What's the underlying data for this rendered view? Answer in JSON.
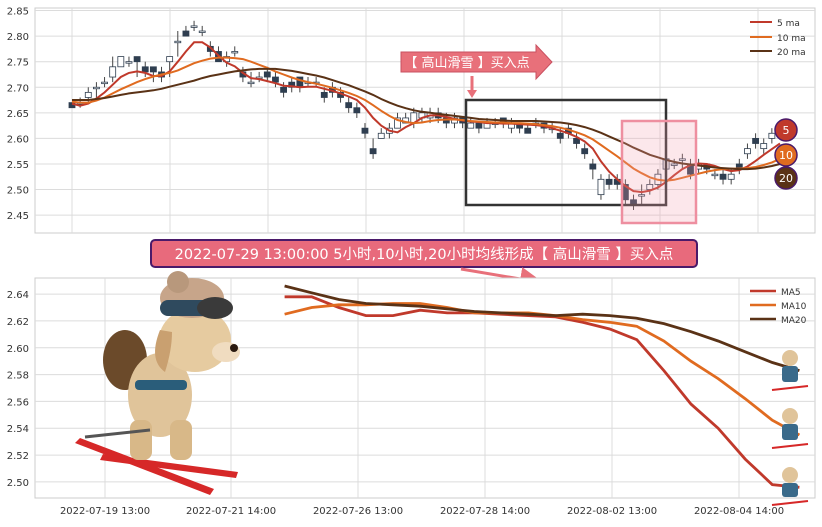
{
  "colors": {
    "ma5": "#c0392b",
    "ma10": "#e06b20",
    "ma20": "#5a3216",
    "up_candle": "#ffffff",
    "down_candle": "#2f3e50",
    "grid": "#dcdcdc",
    "plot_bg": "#ffffff",
    "callout_fill": "#e8707a",
    "banner_fill": "#e86a7c",
    "banner_border": "#4a1a6a",
    "box_dark": "#333333",
    "box_pink": "#f2a0b0"
  },
  "banner": {
    "text": "2022-07-29 13:00:00 5小时,10小时,20小时均线形成【 高山滑雪 】买入点"
  },
  "callout": {
    "text": "【 高山滑雪 】买入点"
  },
  "badges": [
    "5",
    "10",
    "20"
  ],
  "chart_data": [
    {
      "type": "candlestick",
      "title": "",
      "xlabel": "",
      "ylabel": "",
      "ylim": [
        2.415,
        2.855
      ],
      "yticks": [
        "2.45",
        "2.50",
        "2.55",
        "2.60",
        "2.65",
        "2.70",
        "2.75",
        "2.80",
        "2.85"
      ],
      "grid": true,
      "legend": {
        "position": "top-right",
        "entries": [
          "5 ma",
          "10 ma",
          "20 ma"
        ]
      },
      "candles": [
        [
          2.67,
          2.66,
          2.66,
          2.67
        ],
        [
          2.67,
          2.67,
          2.66,
          2.68
        ],
        [
          2.68,
          2.69,
          2.67,
          2.7
        ],
        [
          2.7,
          2.7,
          2.68,
          2.71
        ],
        [
          2.71,
          2.71,
          2.7,
          2.72
        ],
        [
          2.72,
          2.74,
          2.71,
          2.76
        ],
        [
          2.74,
          2.76,
          2.74,
          2.76
        ],
        [
          2.75,
          2.75,
          2.74,
          2.76
        ],
        [
          2.76,
          2.75,
          2.72,
          2.76
        ],
        [
          2.74,
          2.73,
          2.72,
          2.75
        ],
        [
          2.74,
          2.73,
          2.71,
          2.74
        ],
        [
          2.73,
          2.72,
          2.71,
          2.74
        ],
        [
          2.75,
          2.76,
          2.72,
          2.76
        ],
        [
          2.79,
          2.79,
          2.76,
          2.81
        ],
        [
          2.81,
          2.8,
          2.8,
          2.82
        ],
        [
          2.82,
          2.82,
          2.81,
          2.83
        ],
        [
          2.81,
          2.81,
          2.8,
          2.82
        ],
        [
          2.78,
          2.77,
          2.76,
          2.79
        ],
        [
          2.77,
          2.75,
          2.75,
          2.78
        ],
        [
          2.75,
          2.76,
          2.74,
          2.77
        ],
        [
          2.77,
          2.77,
          2.76,
          2.78
        ],
        [
          2.73,
          2.72,
          2.71,
          2.74
        ],
        [
          2.71,
          2.71,
          2.7,
          2.73
        ],
        [
          2.72,
          2.72,
          2.71,
          2.73
        ],
        [
          2.73,
          2.72,
          2.71,
          2.74
        ],
        [
          2.72,
          2.71,
          2.7,
          2.73
        ],
        [
          2.7,
          2.69,
          2.68,
          2.71
        ],
        [
          2.71,
          2.7,
          2.69,
          2.72
        ],
        [
          2.72,
          2.7,
          2.69,
          2.72
        ],
        [
          2.71,
          2.71,
          2.7,
          2.72
        ],
        [
          2.71,
          2.71,
          2.7,
          2.72
        ],
        [
          2.69,
          2.68,
          2.67,
          2.7
        ],
        [
          2.7,
          2.69,
          2.68,
          2.71
        ],
        [
          2.69,
          2.68,
          2.67,
          2.7
        ],
        [
          2.67,
          2.66,
          2.65,
          2.68
        ],
        [
          2.66,
          2.65,
          2.64,
          2.67
        ],
        [
          2.62,
          2.61,
          2.6,
          2.63
        ],
        [
          2.58,
          2.57,
          2.56,
          2.6
        ],
        [
          2.6,
          2.61,
          2.6,
          2.62
        ],
        [
          2.61,
          2.62,
          2.6,
          2.63
        ],
        [
          2.62,
          2.64,
          2.62,
          2.65
        ],
        [
          2.63,
          2.64,
          2.63,
          2.65
        ],
        [
          2.63,
          2.65,
          2.62,
          2.66
        ],
        [
          2.64,
          2.65,
          2.63,
          2.66
        ],
        [
          2.64,
          2.65,
          2.63,
          2.66
        ],
        [
          2.65,
          2.64,
          2.63,
          2.66
        ],
        [
          2.64,
          2.63,
          2.62,
          2.65
        ],
        [
          2.63,
          2.64,
          2.62,
          2.65
        ],
        [
          2.64,
          2.63,
          2.62,
          2.64
        ],
        [
          2.62,
          2.63,
          2.62,
          2.64
        ],
        [
          2.63,
          2.62,
          2.61,
          2.63
        ],
        [
          2.62,
          2.63,
          2.62,
          2.64
        ],
        [
          2.63,
          2.63,
          2.62,
          2.64
        ],
        [
          2.64,
          2.63,
          2.62,
          2.64
        ],
        [
          2.62,
          2.63,
          2.61,
          2.64
        ],
        [
          2.63,
          2.62,
          2.61,
          2.63
        ],
        [
          2.62,
          2.61,
          2.61,
          2.63
        ],
        [
          2.63,
          2.63,
          2.62,
          2.64
        ],
        [
          2.63,
          2.62,
          2.61,
          2.63
        ],
        [
          2.62,
          2.62,
          2.61,
          2.63
        ],
        [
          2.61,
          2.6,
          2.59,
          2.62
        ],
        [
          2.62,
          2.61,
          2.6,
          2.63
        ],
        [
          2.6,
          2.59,
          2.58,
          2.61
        ],
        [
          2.58,
          2.57,
          2.56,
          2.59
        ],
        [
          2.55,
          2.54,
          2.52,
          2.56
        ],
        [
          2.49,
          2.52,
          2.48,
          2.53
        ],
        [
          2.52,
          2.51,
          2.5,
          2.53
        ],
        [
          2.52,
          2.51,
          2.5,
          2.53
        ],
        [
          2.51,
          2.48,
          2.47,
          2.52
        ],
        [
          2.48,
          2.47,
          2.46,
          2.49
        ],
        [
          2.49,
          2.49,
          2.47,
          2.51
        ],
        [
          2.5,
          2.51,
          2.49,
          2.52
        ],
        [
          2.51,
          2.53,
          2.5,
          2.54
        ],
        [
          2.54,
          2.56,
          2.53,
          2.57
        ],
        [
          2.55,
          2.55,
          2.54,
          2.56
        ],
        [
          2.56,
          2.56,
          2.54,
          2.57
        ],
        [
          2.55,
          2.53,
          2.52,
          2.56
        ],
        [
          2.54,
          2.55,
          2.53,
          2.56
        ],
        [
          2.55,
          2.54,
          2.53,
          2.55
        ],
        [
          2.53,
          2.53,
          2.52,
          2.54
        ],
        [
          2.53,
          2.52,
          2.51,
          2.54
        ],
        [
          2.52,
          2.53,
          2.51,
          2.54
        ],
        [
          2.55,
          2.54,
          2.53,
          2.56
        ],
        [
          2.57,
          2.58,
          2.56,
          2.59
        ],
        [
          2.6,
          2.59,
          2.58,
          2.61
        ],
        [
          2.58,
          2.59,
          2.57,
          2.6
        ],
        [
          2.6,
          2.61,
          2.59,
          2.62
        ],
        [
          2.62,
          2.62,
          2.61,
          2.63
        ]
      ],
      "series": [
        {
          "name": "5 ma",
          "color_key": "ma5",
          "values": [
            2.668,
            2.664,
            2.668,
            2.678,
            2.69,
            2.705,
            2.72,
            2.728,
            2.731,
            2.728,
            2.722,
            2.722,
            2.731,
            2.75,
            2.77,
            2.788,
            2.788,
            2.778,
            2.762,
            2.748,
            2.741,
            2.728,
            2.718,
            2.716,
            2.712,
            2.708,
            2.703,
            2.702,
            2.7,
            2.701,
            2.701,
            2.697,
            2.693,
            2.688,
            2.682,
            2.675,
            2.66,
            2.64,
            2.625,
            2.615,
            2.612,
            2.622,
            2.63,
            2.64,
            2.645,
            2.645,
            2.642,
            2.638,
            2.635,
            2.633,
            2.632,
            2.63,
            2.63,
            2.629,
            2.629,
            2.628,
            2.627,
            2.626,
            2.624,
            2.62,
            2.615,
            2.61,
            2.603,
            2.594,
            2.58,
            2.555,
            2.535,
            2.52,
            2.507,
            2.497,
            2.495,
            2.498,
            2.504,
            2.515,
            2.528,
            2.54,
            2.548,
            2.551,
            2.55,
            2.546,
            2.54,
            2.536,
            2.538,
            2.545,
            2.556,
            2.568,
            2.579,
            2.59
          ]
        },
        {
          "name": "10 ma",
          "color_key": "ma10",
          "values": [
            2.672,
            2.67,
            2.67,
            2.674,
            2.68,
            2.688,
            2.696,
            2.703,
            2.71,
            2.716,
            2.721,
            2.725,
            2.728,
            2.733,
            2.74,
            2.747,
            2.752,
            2.756,
            2.758,
            2.758,
            2.757,
            2.755,
            2.75,
            2.744,
            2.738,
            2.731,
            2.725,
            2.719,
            2.714,
            2.71,
            2.707,
            2.703,
            2.699,
            2.694,
            2.689,
            2.683,
            2.675,
            2.665,
            2.654,
            2.644,
            2.636,
            2.632,
            2.63,
            2.631,
            2.634,
            2.636,
            2.637,
            2.637,
            2.636,
            2.634,
            2.633,
            2.632,
            2.631,
            2.631,
            2.63,
            2.63,
            2.629,
            2.628,
            2.626,
            2.624,
            2.621,
            2.617,
            2.612,
            2.606,
            2.598,
            2.587,
            2.576,
            2.565,
            2.553,
            2.541,
            2.532,
            2.524,
            2.519,
            2.517,
            2.519,
            2.523,
            2.527,
            2.531,
            2.535,
            2.538,
            2.54,
            2.541,
            2.541,
            2.542,
            2.544,
            2.548,
            2.553,
            2.56
          ]
        },
        {
          "name": "20 ma",
          "color_key": "ma20",
          "values": [
            2.675,
            2.675,
            2.675,
            2.677,
            2.679,
            2.682,
            2.685,
            2.688,
            2.69,
            2.692,
            2.694,
            2.697,
            2.701,
            2.705,
            2.709,
            2.713,
            2.718,
            2.722,
            2.725,
            2.728,
            2.731,
            2.733,
            2.735,
            2.736,
            2.736,
            2.736,
            2.734,
            2.732,
            2.729,
            2.726,
            2.723,
            2.719,
            2.714,
            2.709,
            2.704,
            2.698,
            2.692,
            2.685,
            2.677,
            2.67,
            2.664,
            2.659,
            2.655,
            2.652,
            2.65,
            2.648,
            2.646,
            2.644,
            2.642,
            2.64,
            2.638,
            2.637,
            2.636,
            2.635,
            2.634,
            2.634,
            2.634,
            2.634,
            2.633,
            2.632,
            2.631,
            2.629,
            2.626,
            2.622,
            2.617,
            2.611,
            2.604,
            2.597,
            2.59,
            2.582,
            2.575,
            2.568,
            2.563,
            2.558,
            2.554,
            2.551,
            2.549,
            2.547,
            2.545,
            2.543,
            2.542,
            2.541,
            2.54,
            2.54,
            2.541,
            2.543,
            2.546,
            2.55
          ]
        }
      ]
    },
    {
      "type": "line",
      "title": "",
      "xlabel": "",
      "ylabel": "",
      "ylim": [
        2.488,
        2.652
      ],
      "yticks": [
        "2.50",
        "2.52",
        "2.54",
        "2.56",
        "2.58",
        "2.60",
        "2.62",
        "2.64"
      ],
      "xticks": [
        "2022-07-19 13:00",
        "2022-07-21 14:00",
        "2022-07-26 13:00",
        "2022-07-28 14:00",
        "2022-08-02 13:00",
        "2022-08-04 14:00"
      ],
      "grid": true,
      "legend": {
        "position": "top-right",
        "entries": [
          "MA5",
          "MA10",
          "MA20"
        ]
      },
      "x_start_fraction": 0.32,
      "x_end_fraction": 0.98,
      "series": [
        {
          "name": "MA5",
          "color_key": "ma5",
          "values": [
            2.638,
            2.638,
            2.63,
            2.624,
            2.624,
            2.628,
            2.626,
            2.626,
            2.625,
            2.624,
            2.623,
            2.619,
            2.614,
            2.606,
            2.583,
            2.558,
            2.54,
            2.517,
            2.498,
            2.496
          ]
        },
        {
          "name": "MA10",
          "color_key": "ma10",
          "values": [
            2.625,
            2.63,
            2.632,
            2.632,
            2.633,
            2.633,
            2.63,
            2.626,
            2.626,
            2.626,
            2.624,
            2.621,
            2.619,
            2.616,
            2.605,
            2.59,
            2.577,
            2.562,
            2.546,
            2.535
          ]
        },
        {
          "name": "MA20",
          "color_key": "ma20",
          "values": [
            2.646,
            2.641,
            2.636,
            2.633,
            2.632,
            2.631,
            2.629,
            2.627,
            2.626,
            2.625,
            2.624,
            2.625,
            2.624,
            2.622,
            2.618,
            2.612,
            2.605,
            2.597,
            2.589,
            2.583
          ]
        }
      ]
    }
  ]
}
